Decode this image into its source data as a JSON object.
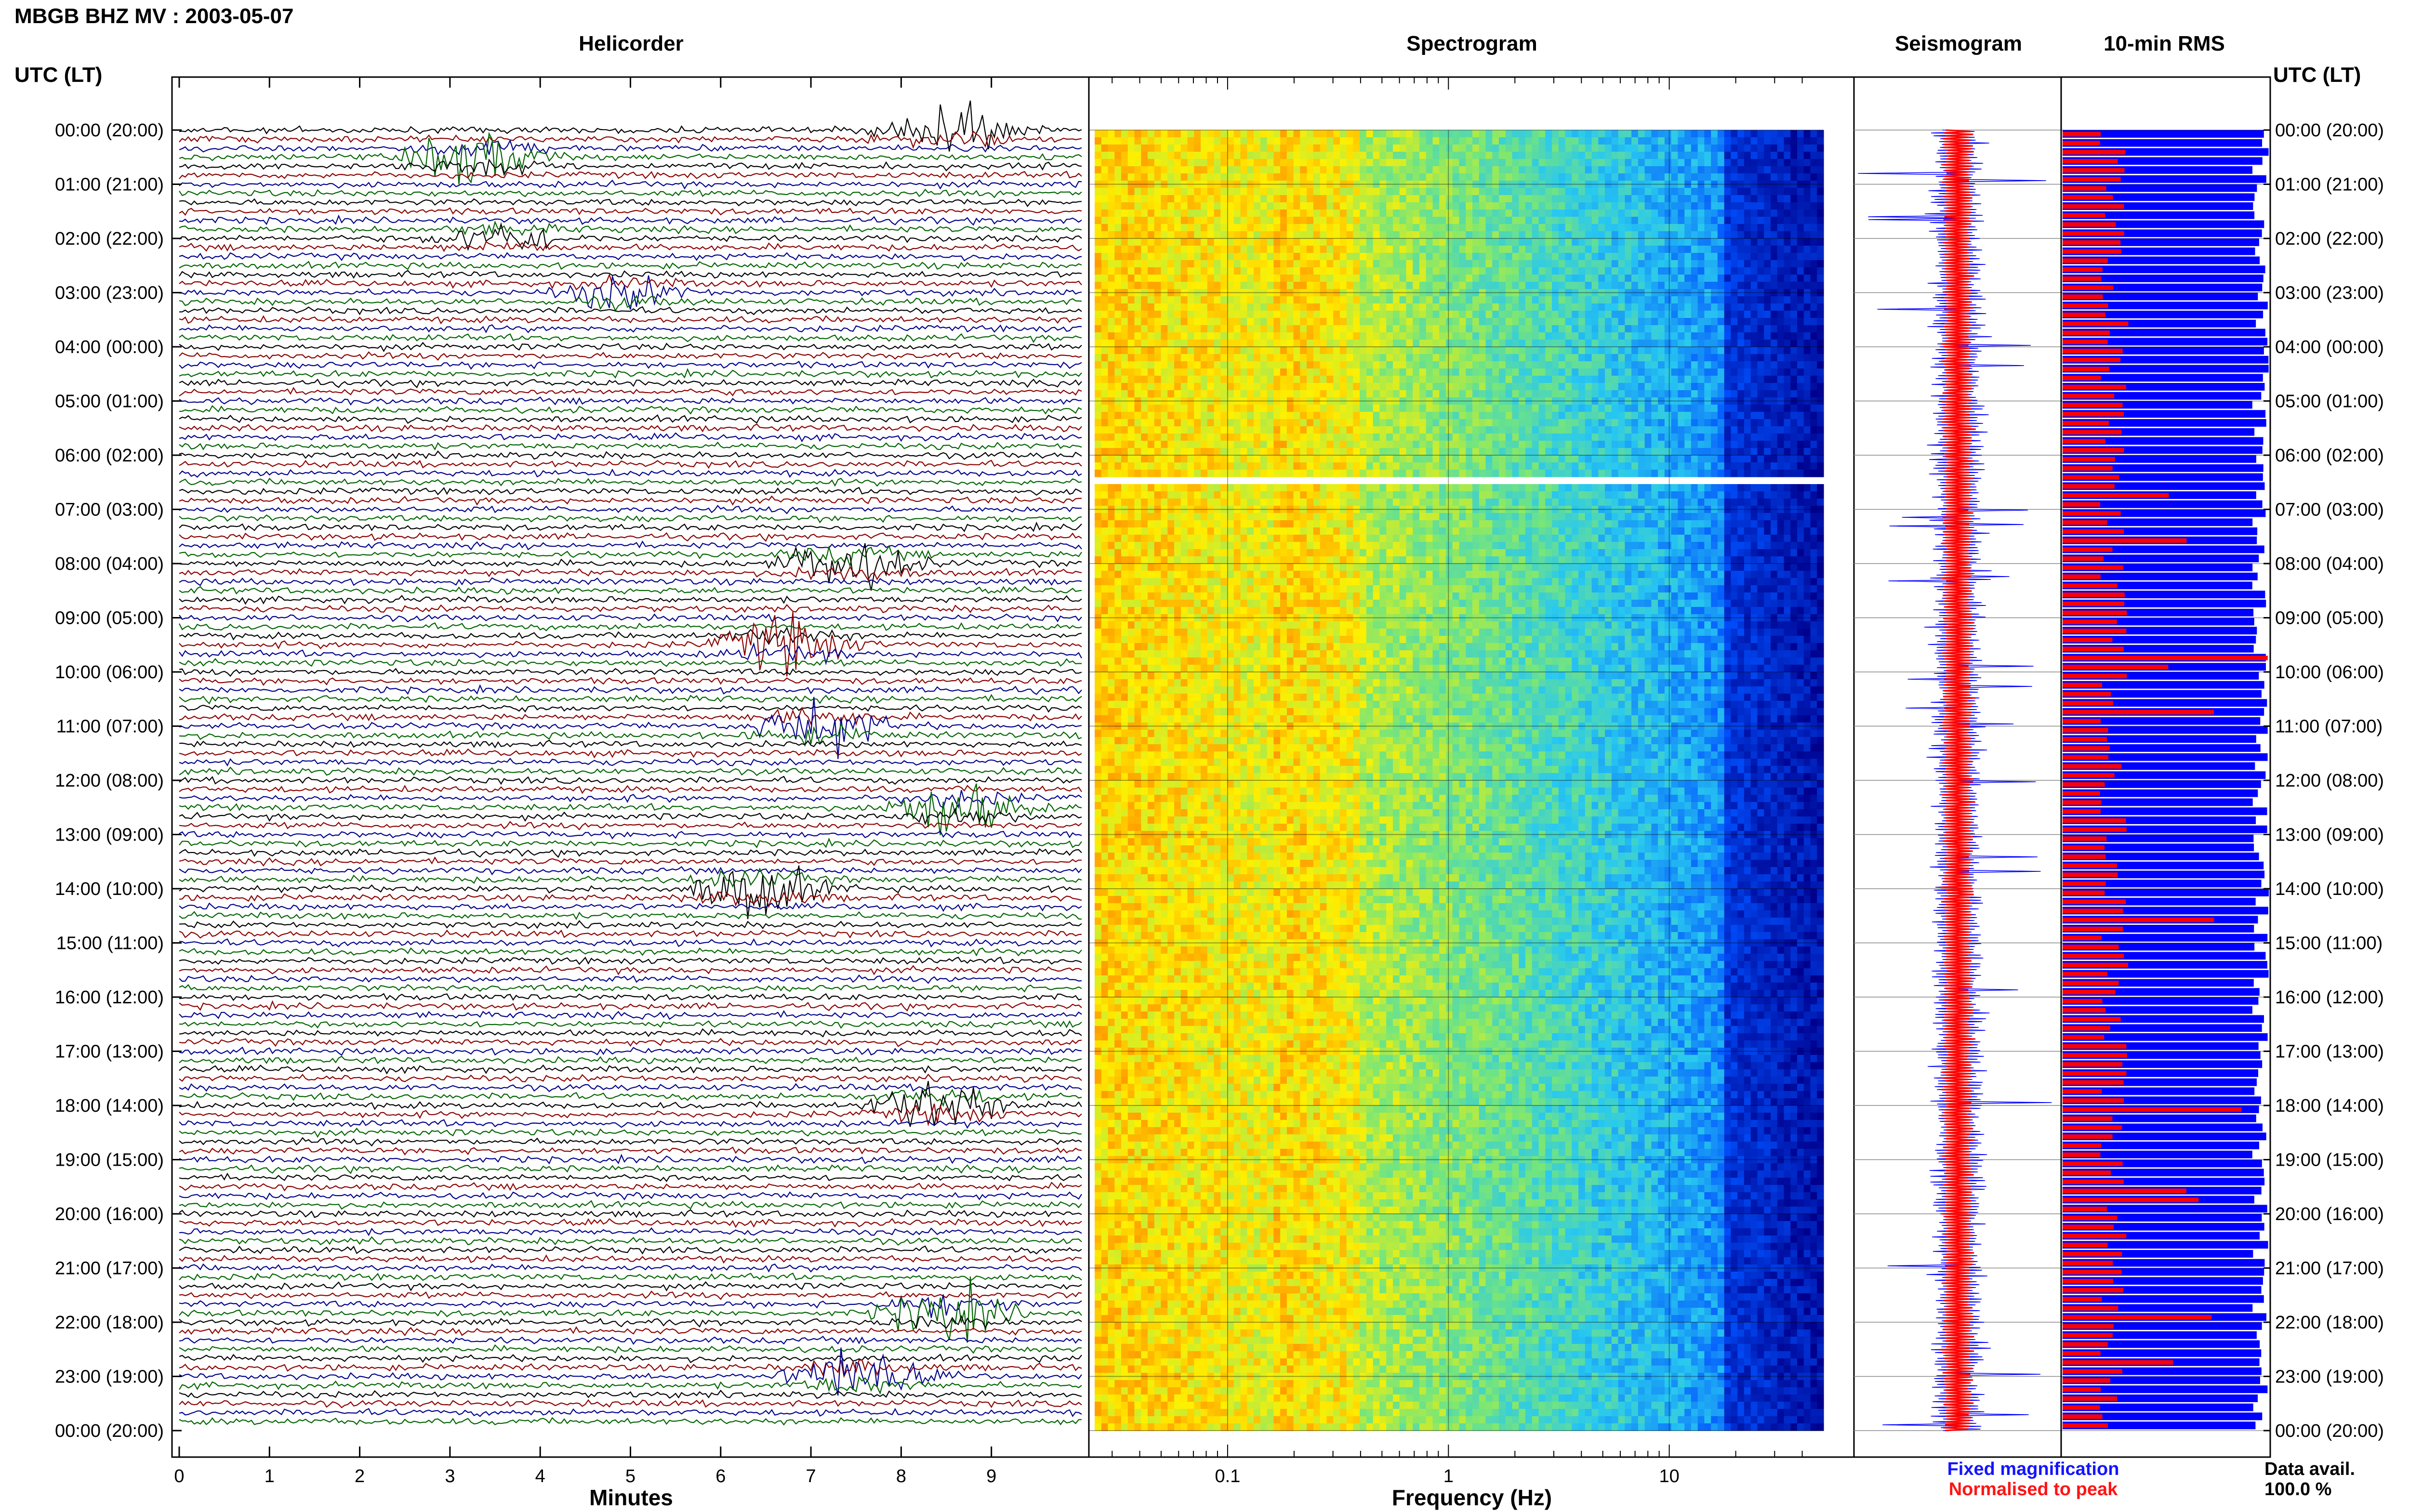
{
  "title": "MBGB BHZ MV : 2003-05-07",
  "utc_header": "UTC (LT)",
  "panels": {
    "helicorder": "Helicorder",
    "spectrogram": "Spectrogram",
    "seismogram": "Seismogram",
    "rms": "10-min RMS"
  },
  "time_labels": [
    "00:00 (20:00)",
    "01:00 (21:00)",
    "02:00 (22:00)",
    "03:00 (23:00)",
    "04:00 (00:00)",
    "05:00 (01:00)",
    "06:00 (02:00)",
    "07:00 (03:00)",
    "08:00 (04:00)",
    "09:00 (05:00)",
    "10:00 (06:00)",
    "11:00 (07:00)",
    "12:00 (08:00)",
    "13:00 (09:00)",
    "14:00 (10:00)",
    "15:00 (11:00)",
    "16:00 (12:00)",
    "17:00 (13:00)",
    "18:00 (14:00)",
    "19:00 (15:00)",
    "20:00 (16:00)",
    "21:00 (17:00)",
    "22:00 (18:00)",
    "23:00 (19:00)",
    "00:00 (20:00)"
  ],
  "legend": {
    "fixed": "Fixed magnification",
    "normalised": "Normalised to peak",
    "data_avail_label": "Data avail.",
    "data_avail_value": "100.0 %"
  },
  "colors": {
    "helicorder_traces": [
      "#000000",
      "#8b0000",
      "#00008b",
      "#006400"
    ],
    "fixed": "#0000ff",
    "normalised": "#ff0000"
  },
  "chart_data": [
    {
      "type": "line",
      "name": "helicorder",
      "title": "Helicorder",
      "xlabel": "Minutes",
      "ylabel": "UTC (LT)",
      "xlim": [
        0,
        10
      ],
      "x_ticks": [
        "0",
        "1",
        "2",
        "3",
        "4",
        "5",
        "6",
        "7",
        "8",
        "9"
      ],
      "trace_colors_cycle": [
        "black",
        "darkred",
        "darkblue",
        "darkgreen"
      ],
      "events": [
        {
          "hour": 0.0,
          "minute": 8.4,
          "amp": "large"
        },
        {
          "hour": 0.5,
          "minute": 3.2,
          "amp": "large"
        },
        {
          "hour": 2.0,
          "minute": 3.5,
          "amp": "medium"
        },
        {
          "hour": 3.0,
          "minute": 4.8,
          "amp": "medium"
        },
        {
          "hour": 8.0,
          "minute": 7.3,
          "amp": "large"
        },
        {
          "hour": 9.5,
          "minute": 6.6,
          "amp": "large"
        },
        {
          "hour": 11.0,
          "minute": 7.0,
          "amp": "large"
        },
        {
          "hour": 12.5,
          "minute": 8.5,
          "amp": "large"
        },
        {
          "hour": 14.0,
          "minute": 6.3,
          "amp": "large"
        },
        {
          "hour": 18.0,
          "minute": 8.3,
          "amp": "large"
        },
        {
          "hour": 21.8,
          "minute": 8.4,
          "amp": "large"
        },
        {
          "hour": 23.0,
          "minute": 7.4,
          "amp": "large"
        }
      ]
    },
    {
      "type": "heatmap",
      "name": "spectrogram",
      "title": "Spectrogram",
      "xlabel": "Frequency (Hz)",
      "x_scale": "log",
      "xlim": [
        0.025,
        50
      ],
      "x_ticks": [
        "0.1",
        "1",
        "10"
      ],
      "gap_at_hour": 6.4
    },
    {
      "type": "line",
      "name": "seismogram",
      "title": "Seismogram",
      "series": [
        {
          "name": "Fixed magnification",
          "color": "blue"
        },
        {
          "name": "Normalised to peak",
          "color": "red"
        }
      ]
    },
    {
      "type": "bar",
      "name": "rms",
      "title": "10-min RMS",
      "orientation": "horizontal",
      "bins_per_hour": 6,
      "hours": 24,
      "series": [
        {
          "name": "Fixed magnification",
          "color": "blue"
        },
        {
          "name": "Normalised to peak",
          "color": "red"
        }
      ]
    }
  ]
}
